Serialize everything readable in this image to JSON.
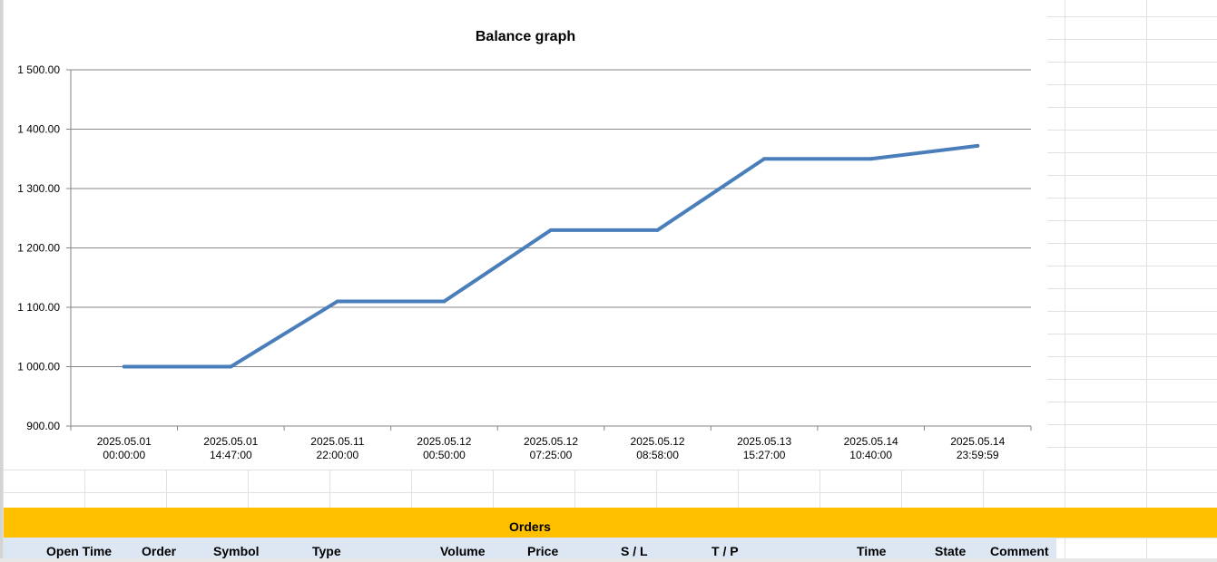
{
  "chart_data": {
    "type": "line",
    "title": "Balance graph",
    "xlabel": "",
    "ylabel": "",
    "categories": [
      [
        "2025.05.01",
        "00:00:00"
      ],
      [
        "2025.05.01",
        "14:47:00"
      ],
      [
        "2025.05.11",
        "22:00:00"
      ],
      [
        "2025.05.12",
        "00:50:00"
      ],
      [
        "2025.05.12",
        "07:25:00"
      ],
      [
        "2025.05.12",
        "08:58:00"
      ],
      [
        "2025.05.13",
        "15:27:00"
      ],
      [
        "2025.05.14",
        "10:40:00"
      ],
      [
        "2025.05.14",
        "23:59:59"
      ]
    ],
    "series": [
      {
        "values": [
          1000,
          1000,
          1110,
          1110,
          1230,
          1230,
          1350,
          1350,
          1372
        ],
        "color": "#4a7ebb"
      }
    ],
    "ylim": [
      900,
      1500
    ],
    "yticks": [
      900,
      1000,
      1100,
      1200,
      1300,
      1400,
      1500
    ],
    "ytick_labels": [
      "900.00",
      "1 000.00",
      "1 100.00",
      "1 200.00",
      "1 300.00",
      "1 400.00",
      "1 500.00"
    ],
    "grid": true,
    "legend": "none"
  },
  "orders": {
    "title": "Orders",
    "columns": [
      "Open Time",
      "Order",
      "Symbol",
      "Type",
      "Volume",
      "Price",
      "S / L",
      "T / P",
      "Time",
      "State",
      "Comment"
    ]
  },
  "colors": {
    "header_bg": "#ffc000",
    "column_header_bg": "#dde7f4",
    "line": "#4a7ebb"
  }
}
